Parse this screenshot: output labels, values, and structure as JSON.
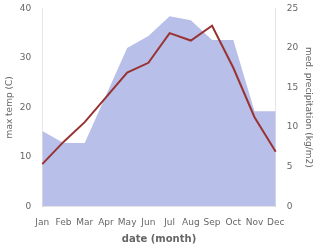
{
  "chart_data": {
    "type": "line",
    "categories": [
      "Jan",
      "Feb",
      "Mar",
      "Apr",
      "May",
      "Jun",
      "Jul",
      "Aug",
      "Sep",
      "Oct",
      "Nov",
      "Dec"
    ],
    "series": [
      {
        "type": "line",
        "color": "#993333",
        "values": [
          8.5,
          13.0,
          17.0,
          22.0,
          27.0,
          29.0,
          35.0,
          33.5,
          36.5,
          28.0,
          18.0,
          11.0
        ]
      },
      {
        "type": "area",
        "color": "#b8bfe8",
        "axis": "y2",
        "values": [
          9.5,
          8.0,
          8.0,
          14.0,
          20.0,
          21.5,
          24.0,
          23.5,
          21.0,
          21.0,
          12.0,
          12.0
        ]
      }
    ],
    "xlabel": "date (month)",
    "ylabel": "max temp (C)",
    "y2label": "med. precipitation (kg/m2)",
    "ylim": [
      0,
      40
    ],
    "yticks": [
      0,
      10,
      20,
      30,
      40
    ],
    "y2lim": [
      0,
      25
    ],
    "y2ticks": [
      0,
      5,
      10,
      15,
      20,
      25
    ],
    "grid": false
  }
}
